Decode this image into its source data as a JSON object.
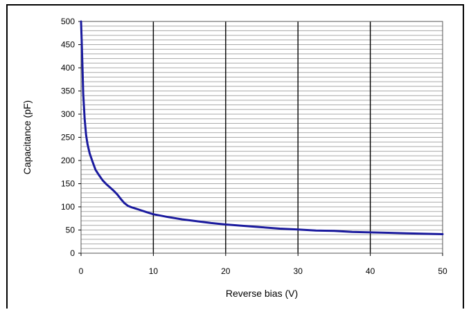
{
  "chart_data": {
    "type": "line",
    "xlabel": "Reverse bias (V)",
    "ylabel": "Capacitance (pF)",
    "xlim": [
      0,
      50
    ],
    "ylim": [
      0,
      500
    ],
    "x_ticks": [
      0,
      10,
      20,
      30,
      40,
      50
    ],
    "y_ticks": [
      0,
      50,
      100,
      150,
      200,
      250,
      300,
      350,
      400,
      450,
      500
    ],
    "x_major_grid_step": 10,
    "y_minor_grid_step": 10,
    "grid": true,
    "legend": "none",
    "series": [
      {
        "color": "#1a1a9e",
        "x": [
          0.0,
          0.1,
          0.2,
          0.3,
          0.5,
          0.7,
          0.9,
          1.2,
          1.6,
          2.0,
          2.5,
          3.0,
          3.5,
          4.0,
          4.5,
          5.0,
          5.5,
          6.0,
          6.5,
          7.0,
          8.0,
          9.0,
          10.0,
          12.0,
          14.0,
          16.0,
          18.0,
          20.0,
          22.5,
          25.0,
          27.5,
          30.0,
          32.5,
          35.0,
          37.5,
          40.0,
          42.5,
          45.0,
          47.5,
          50.0
        ],
        "y": [
          500,
          455,
          400,
          345,
          290,
          255,
          235,
          215,
          197,
          180,
          168,
          157,
          149,
          142,
          135,
          127,
          117,
          108,
          102,
          99,
          94,
          89,
          84,
          78,
          73,
          69,
          65,
          62,
          59,
          56,
          53,
          51,
          49,
          48,
          46,
          45,
          44,
          43,
          42,
          41
        ]
      }
    ]
  }
}
